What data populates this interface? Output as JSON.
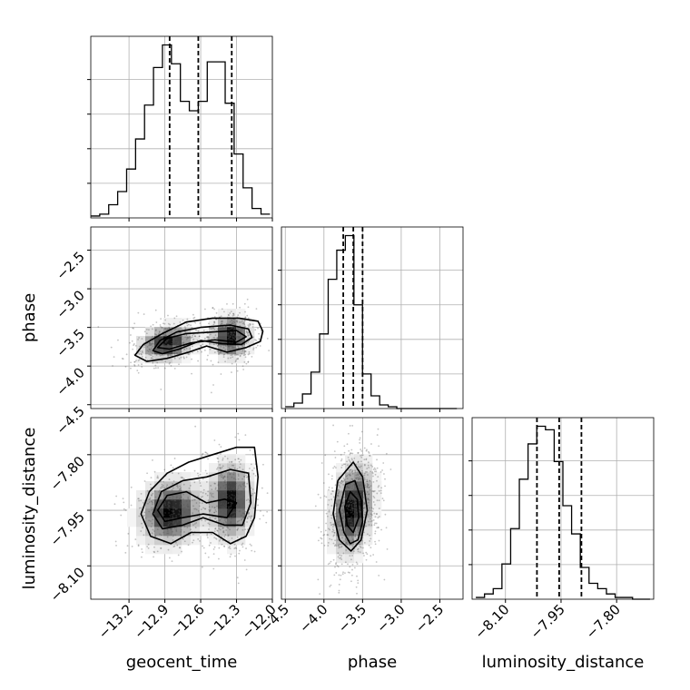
{
  "chart_data": {
    "type": "corner",
    "grid": true,
    "parameters": [
      {
        "key": "geocent_time",
        "label": "geocent_time",
        "range": [
          -13.52,
          -12.0
        ],
        "ticks": [
          -13.2,
          -12.9,
          -12.6,
          -12.3,
          -12.0
        ],
        "tick_labels": [
          "−13.2",
          "−12.9",
          "−12.6",
          "−12.3",
          "−12.0"
        ]
      },
      {
        "key": "phase",
        "label": "phase",
        "range": [
          -4.55,
          -2.2
        ],
        "ticks": [
          -4.5,
          -4.0,
          -3.5,
          -3.0,
          -2.5
        ],
        "tick_labels": [
          "−4.5",
          "−4.0",
          "−3.5",
          "−3.0",
          "−2.5"
        ]
      },
      {
        "key": "luminosity_distance",
        "label": "luminosity_distance",
        "range": [
          -8.19,
          -7.7
        ],
        "ticks": [
          -8.1,
          -7.95,
          -7.8
        ],
        "tick_labels": [
          "−8.10",
          "−7.95",
          "−7.80"
        ]
      }
    ],
    "histograms": [
      {
        "param": "geocent_time",
        "bins": 20,
        "bin_range": [
          -13.52,
          -12.02
        ],
        "counts": [
          1,
          2,
          7,
          14,
          26,
          42,
          60,
          80,
          92,
          82,
          62,
          57,
          62,
          83,
          83,
          61,
          34,
          16,
          5,
          2
        ],
        "quantiles": [
          -12.86,
          -12.62,
          -12.34
        ]
      },
      {
        "param": "phase",
        "bins": 20,
        "bin_range": [
          -4.5,
          -2.28
        ],
        "counts": [
          1,
          3,
          8,
          20,
          41,
          71,
          87,
          95,
          57,
          19,
          7,
          2,
          1,
          0,
          0,
          0,
          0,
          0,
          0,
          0
        ],
        "quantiles": [
          -3.75,
          -3.62,
          -3.5
        ]
      },
      {
        "param": "luminosity_distance",
        "bins": 20,
        "bin_range": [
          -8.18,
          -7.71
        ],
        "counts": [
          1,
          3,
          6,
          20,
          40,
          68,
          88,
          98,
          96,
          78,
          53,
          37,
          18,
          9,
          6,
          3,
          1,
          1,
          0,
          0
        ],
        "quantiles": [
          -8.015,
          -7.955,
          -7.895
        ]
      }
    ],
    "pairs": [
      {
        "x": "geocent_time",
        "y": "phase",
        "components": [
          {
            "mx": -12.88,
            "my": -3.7,
            "sx": 0.13,
            "sy": 0.13,
            "rho": 0.2,
            "w": 0.48
          },
          {
            "mx": -12.35,
            "my": -3.62,
            "sx": 0.09,
            "sy": 0.15,
            "rho": 0.0,
            "w": 0.52
          }
        ],
        "contours": [
          [
            [
              -13.15,
              -3.86
            ],
            [
              -13.08,
              -3.72
            ],
            [
              -12.92,
              -3.58
            ],
            [
              -12.72,
              -3.43
            ],
            [
              -12.5,
              -3.38
            ],
            [
              -12.28,
              -3.38
            ],
            [
              -12.12,
              -3.42
            ],
            [
              -12.08,
              -3.55
            ],
            [
              -12.1,
              -3.68
            ],
            [
              -12.22,
              -3.76
            ],
            [
              -12.38,
              -3.82
            ],
            [
              -12.55,
              -3.74
            ],
            [
              -12.7,
              -3.82
            ],
            [
              -12.88,
              -3.9
            ],
            [
              -13.05,
              -3.94
            ]
          ],
          [
            [
              -13.0,
              -3.8
            ],
            [
              -12.94,
              -3.67
            ],
            [
              -12.8,
              -3.56
            ],
            [
              -12.6,
              -3.5
            ],
            [
              -12.35,
              -3.47
            ],
            [
              -12.2,
              -3.52
            ],
            [
              -12.17,
              -3.63
            ],
            [
              -12.26,
              -3.72
            ],
            [
              -12.42,
              -3.71
            ],
            [
              -12.6,
              -3.67
            ],
            [
              -12.78,
              -3.78
            ],
            [
              -12.92,
              -3.84
            ]
          ],
          [
            [
              -12.96,
              -3.76
            ],
            [
              -12.88,
              -3.64
            ],
            [
              -12.72,
              -3.58
            ],
            [
              -12.5,
              -3.56
            ],
            [
              -12.3,
              -3.54
            ],
            [
              -12.22,
              -3.62
            ],
            [
              -12.3,
              -3.69
            ],
            [
              -12.48,
              -3.66
            ],
            [
              -12.68,
              -3.7
            ],
            [
              -12.86,
              -3.78
            ]
          ]
        ]
      },
      {
        "x": "geocent_time",
        "y": "luminosity_distance",
        "components": [
          {
            "mx": -12.85,
            "my": -7.955,
            "sx": 0.15,
            "sy": 0.05,
            "rho": 0.1,
            "w": 0.5
          },
          {
            "mx": -12.35,
            "my": -7.925,
            "sx": 0.1,
            "sy": 0.06,
            "rho": 0.0,
            "w": 0.5
          }
        ],
        "contours": [
          [
            [
              -13.1,
              -7.96
            ],
            [
              -13.03,
              -7.9
            ],
            [
              -12.88,
              -7.85
            ],
            [
              -12.7,
              -7.82
            ],
            [
              -12.5,
              -7.8
            ],
            [
              -12.3,
              -7.78
            ],
            [
              -12.15,
              -7.78
            ],
            [
              -12.12,
              -7.86
            ],
            [
              -12.15,
              -7.97
            ],
            [
              -12.22,
              -8.02
            ],
            [
              -12.35,
              -8.04
            ],
            [
              -12.5,
              -8.01
            ],
            [
              -12.68,
              -8.01
            ],
            [
              -12.85,
              -8.04
            ],
            [
              -13.02,
              -8.02
            ]
          ],
          [
            [
              -13.0,
              -7.96
            ],
            [
              -12.93,
              -7.9
            ],
            [
              -12.75,
              -7.87
            ],
            [
              -12.55,
              -7.86
            ],
            [
              -12.35,
              -7.84
            ],
            [
              -12.2,
              -7.85
            ],
            [
              -12.18,
              -7.93
            ],
            [
              -12.25,
              -7.99
            ],
            [
              -12.4,
              -7.99
            ],
            [
              -12.58,
              -7.97
            ],
            [
              -12.75,
              -7.99
            ],
            [
              -12.92,
              -8.0
            ]
          ],
          [
            [
              -12.96,
              -7.95
            ],
            [
              -12.88,
              -7.91
            ],
            [
              -12.72,
              -7.9
            ],
            [
              -12.55,
              -7.93
            ],
            [
              -12.4,
              -7.92
            ],
            [
              -12.3,
              -7.93
            ],
            [
              -12.38,
              -7.97
            ],
            [
              -12.58,
              -7.96
            ],
            [
              -12.75,
              -7.97
            ],
            [
              -12.9,
              -7.98
            ]
          ]
        ]
      },
      {
        "x": "phase",
        "y": "luminosity_distance",
        "components": [
          {
            "mx": -3.63,
            "my": -7.945,
            "sx": 0.15,
            "sy": 0.07,
            "rho": 0.25,
            "w": 1.0
          }
        ],
        "contours": [
          [
            [
              -3.8,
              -8.03
            ],
            [
              -3.88,
              -7.96
            ],
            [
              -3.82,
              -7.87
            ],
            [
              -3.62,
              -7.82
            ],
            [
              -3.5,
              -7.86
            ],
            [
              -3.44,
              -7.95
            ],
            [
              -3.52,
              -8.03
            ],
            [
              -3.65,
              -8.06
            ]
          ],
          [
            [
              -3.74,
              -8.01
            ],
            [
              -3.8,
              -7.95
            ],
            [
              -3.72,
              -7.88
            ],
            [
              -3.6,
              -7.87
            ],
            [
              -3.52,
              -7.92
            ],
            [
              -3.5,
              -7.98
            ],
            [
              -3.56,
              -8.03
            ],
            [
              -3.66,
              -8.04
            ]
          ],
          [
            [
              -3.7,
              -7.99
            ],
            [
              -3.73,
              -7.94
            ],
            [
              -3.66,
              -7.9
            ],
            [
              -3.57,
              -7.92
            ],
            [
              -3.55,
              -7.97
            ],
            [
              -3.62,
              -8.01
            ]
          ]
        ]
      }
    ]
  }
}
